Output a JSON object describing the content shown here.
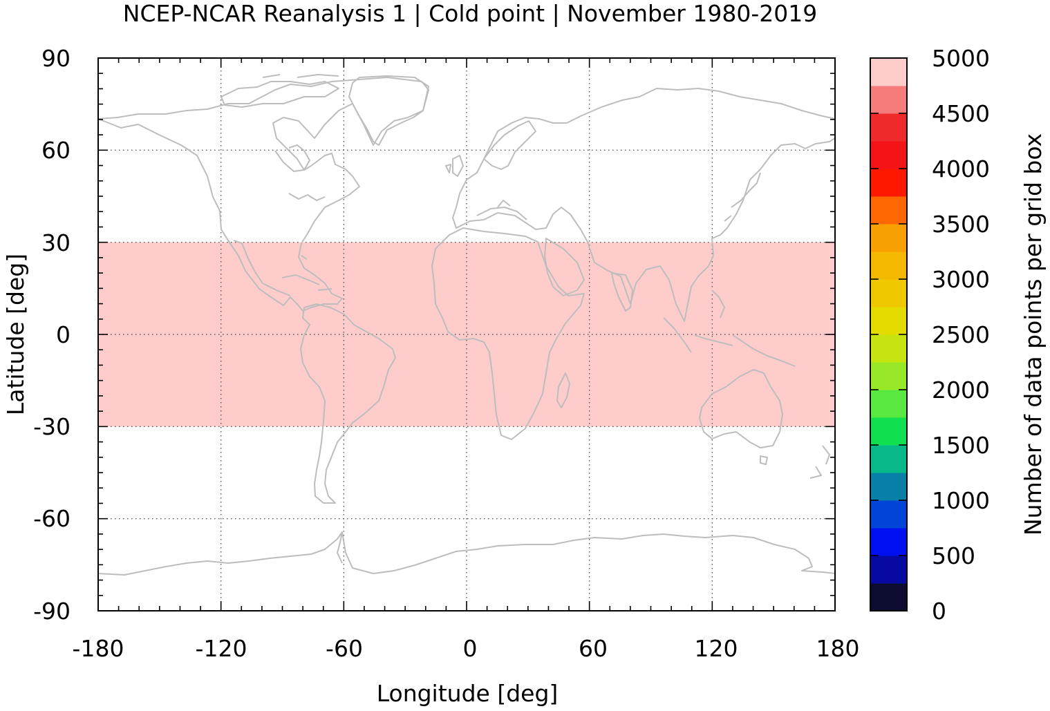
{
  "title": "NCEP-NCAR Reanalysis 1 | Cold point | November 1980-2019",
  "map": {
    "xlabel": "Longitude [deg]",
    "ylabel": "Latitude [deg]",
    "xlim": [
      -180,
      180
    ],
    "ylim": [
      -90,
      90
    ],
    "x_ticks": [
      "-180",
      "-120",
      "-60",
      "0",
      "60",
      "120",
      "180"
    ],
    "y_ticks": [
      "90",
      "60",
      "30",
      "0",
      "-30",
      "-60",
      "-90"
    ],
    "grid": "dotted at 60 deg longitude and 30 deg latitude",
    "coastline_color": "#bdbdbd",
    "field_region": {
      "lat_min": -30,
      "lat_max": 30,
      "lon_min": -180,
      "lon_max": 180,
      "value": 5000,
      "color": "#ffcccc"
    }
  },
  "colorbar": {
    "label": "Number of data points per grid box",
    "range": [
      0,
      5000
    ],
    "tick_labels": [
      "5000",
      "4500",
      "4000",
      "3500",
      "3000",
      "2500",
      "2000",
      "1500",
      "1000",
      "500",
      "0"
    ],
    "colors_bottom_to_top": [
      "#0c0c30",
      "#060aa0",
      "#0010f0",
      "#0044d8",
      "#0880a8",
      "#08b888",
      "#10e050",
      "#58e840",
      "#98e828",
      "#c8e410",
      "#e4dc00",
      "#f0c800",
      "#f4b800",
      "#f8a000",
      "#ff6800",
      "#ff1800",
      "#f41418",
      "#ee2a2a",
      "#f47c7c",
      "#ffcccc"
    ]
  }
}
